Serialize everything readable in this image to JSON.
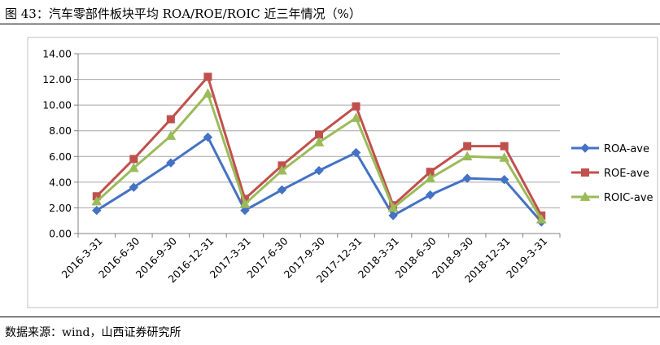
{
  "figure": {
    "title": "图 43：汽车零部件板块平均 ROA/ROE/ROIC 近三年情况（%）",
    "source": "数据来源：wind，山西证券研究所"
  },
  "chart_data": {
    "type": "line",
    "categories": [
      "2016-3-31",
      "2016-6-30",
      "2016-9-30",
      "2016-12-31",
      "2017-3-31",
      "2017-6-30",
      "2017-9-30",
      "2017-12-31",
      "2018-3-31",
      "2018-6-30",
      "2018-9-30",
      "2018-12-31",
      "2019-3-31"
    ],
    "y_ticks": [
      "0.00",
      "2.00",
      "4.00",
      "6.00",
      "8.00",
      "10.00",
      "12.00",
      "14.00"
    ],
    "ylim": [
      0,
      14
    ],
    "grid": true,
    "legend_position": "right",
    "series": [
      {
        "name": "ROA-ave",
        "color": "#4472C4",
        "marker": "diamond",
        "values": [
          1.8,
          3.6,
          5.5,
          7.5,
          1.8,
          3.4,
          4.9,
          6.3,
          1.4,
          3.0,
          4.3,
          4.2,
          0.9
        ]
      },
      {
        "name": "ROE-ave",
        "color": "#C0504D",
        "marker": "square",
        "values": [
          2.9,
          5.8,
          8.9,
          12.2,
          2.7,
          5.3,
          7.7,
          9.9,
          2.2,
          4.8,
          6.8,
          6.8,
          1.4
        ]
      },
      {
        "name": "ROIC-ave",
        "color": "#9BBB59",
        "marker": "triangle",
        "values": [
          2.5,
          5.1,
          7.6,
          10.9,
          2.3,
          4.9,
          7.1,
          9.0,
          2.0,
          4.3,
          6.0,
          5.9,
          1.1
        ]
      }
    ]
  }
}
